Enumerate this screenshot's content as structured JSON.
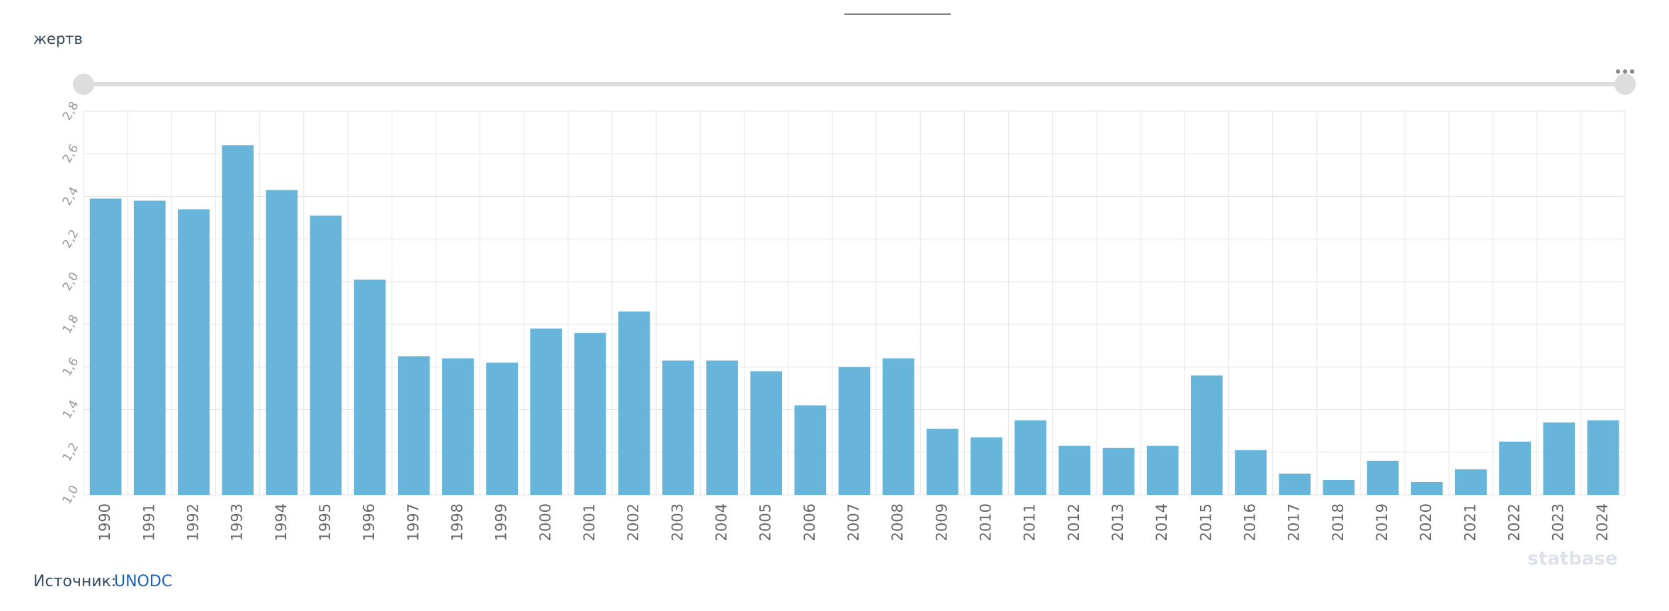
{
  "unit_label": "жертв",
  "source": {
    "prefix": "Источник:",
    "link": "UNODC"
  },
  "watermark": "statbase",
  "chart_data": {
    "type": "bar",
    "color": "#67b5db",
    "grid": true,
    "categories": [
      "1990",
      "1991",
      "1992",
      "1993",
      "1994",
      "1995",
      "1996",
      "1997",
      "1998",
      "1999",
      "2000",
      "2001",
      "2002",
      "2003",
      "2004",
      "2005",
      "2006",
      "2007",
      "2008",
      "2009",
      "2010",
      "2011",
      "2012",
      "2013",
      "2014",
      "2015",
      "2016",
      "2017",
      "2018",
      "2019",
      "2020",
      "2021",
      "2022",
      "2023",
      "2024"
    ],
    "values": [
      2.39,
      2.38,
      2.34,
      2.64,
      2.43,
      2.31,
      2.01,
      1.65,
      1.64,
      1.62,
      1.78,
      1.76,
      1.86,
      1.63,
      1.63,
      1.58,
      1.42,
      1.6,
      1.64,
      1.31,
      1.27,
      1.35,
      1.23,
      1.22,
      1.23,
      1.56,
      1.21,
      1.1,
      1.07,
      1.16,
      1.06,
      1.12,
      1.25,
      1.34,
      1.35
    ],
    "ylim": [
      1.0,
      2.8
    ],
    "yticks": [
      {
        "value": 1.0,
        "label": "1,0"
      },
      {
        "value": 1.2,
        "label": "1,2"
      },
      {
        "value": 1.4,
        "label": "1,4"
      },
      {
        "value": 1.6,
        "label": "1,6"
      },
      {
        "value": 1.8,
        "label": "1,8"
      },
      {
        "value": 2.0,
        "label": "2,0"
      },
      {
        "value": 2.2,
        "label": "2,2"
      },
      {
        "value": 2.4,
        "label": "2,4"
      },
      {
        "value": 2.6,
        "label": "2,6"
      },
      {
        "value": 2.8,
        "label": "2,8"
      }
    ]
  }
}
